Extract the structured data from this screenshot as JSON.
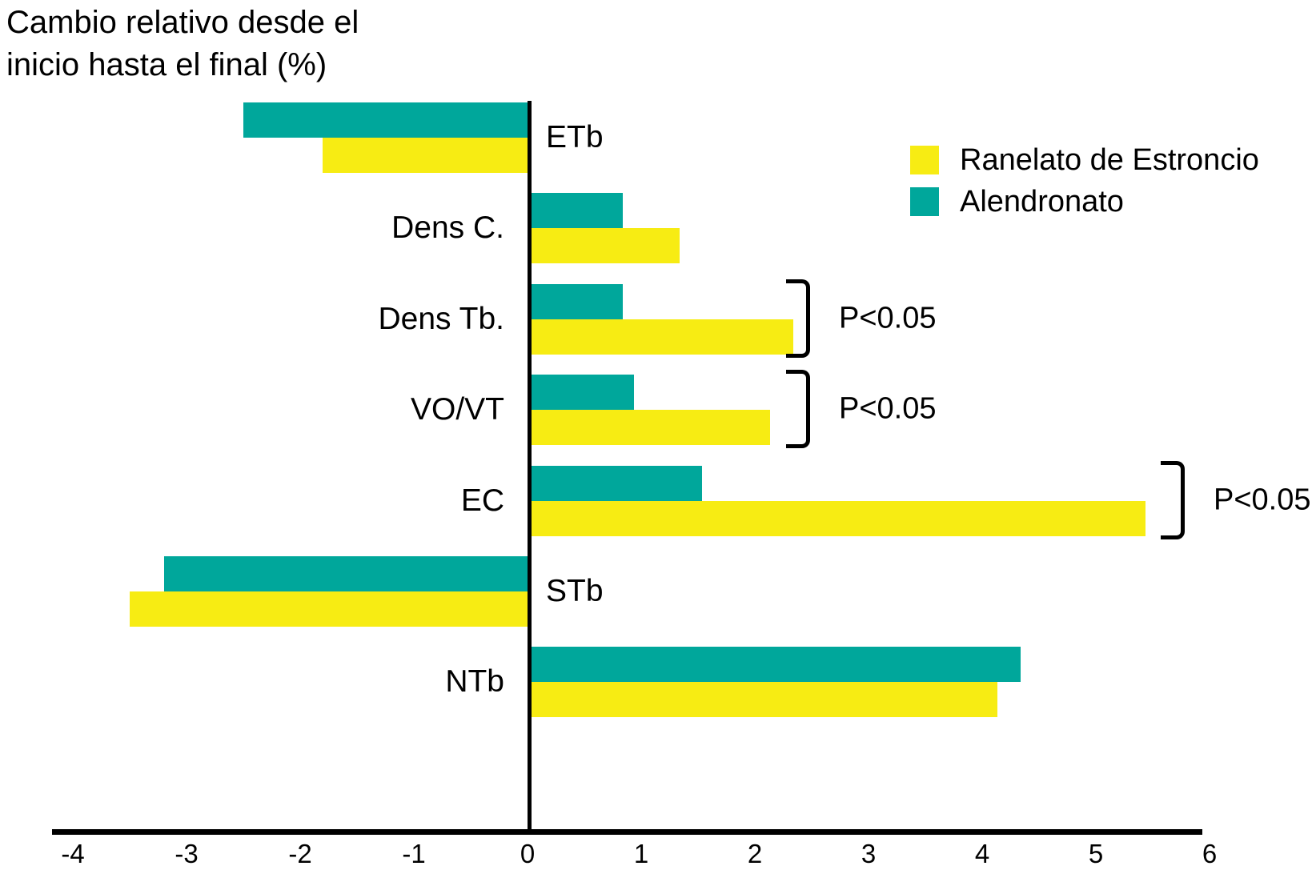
{
  "title": {
    "line1": "Cambio relativo desde el",
    "line2": "inicio hasta el final (%)"
  },
  "legend": {
    "items": [
      {
        "label": "Ranelato de Estroncio",
        "color": "#F7EC13"
      },
      {
        "label": "Alendronato",
        "color": "#00A79B"
      }
    ]
  },
  "chart_data": {
    "type": "bar",
    "orientation": "horizontal",
    "title": "Cambio relativo desde el inicio hasta el final (%)",
    "categories": [
      "ETb",
      "Dens C.",
      "Dens Tb.",
      "VO/VT",
      "EC",
      "STb",
      "NTb"
    ],
    "series": [
      {
        "name": "Ranelato de Estroncio",
        "color": "#F7EC13",
        "values": [
          -1.8,
          1.3,
          2.3,
          2.1,
          5.4,
          -3.5,
          4.1
        ]
      },
      {
        "name": "Alendronato",
        "color": "#00A79B",
        "values": [
          -2.5,
          0.8,
          0.8,
          0.9,
          1.5,
          -3.2,
          4.3
        ]
      }
    ],
    "annotations": [
      {
        "category": "Dens Tb.",
        "label": "P<0.05"
      },
      {
        "category": "VO/VT",
        "label": "P<0.05"
      },
      {
        "category": "EC",
        "label": "P<0.05"
      }
    ],
    "xlim": [
      -4,
      6
    ],
    "x_ticks": [
      -4,
      -3,
      -2,
      -1,
      0,
      1,
      2,
      3,
      4,
      5,
      6
    ],
    "grid": false,
    "legend_position": "top-right",
    "axis_color": "#000000",
    "background": "#ffffff"
  }
}
